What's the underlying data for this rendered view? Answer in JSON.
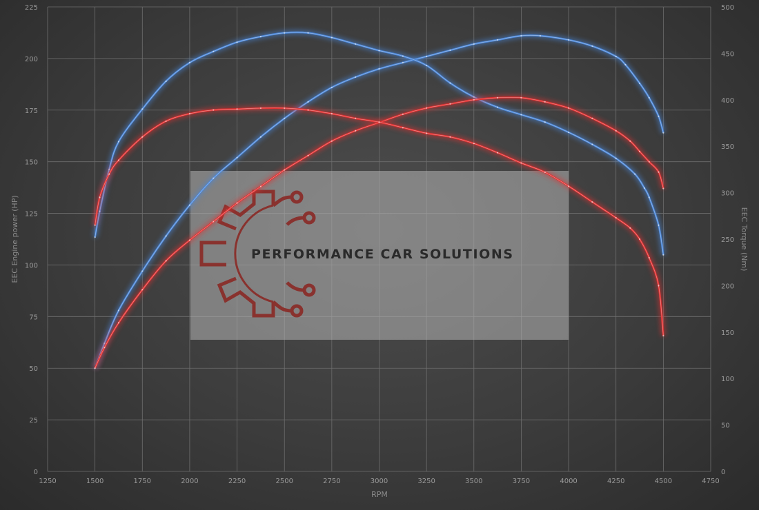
{
  "chart_data": {
    "type": "line",
    "xlabel": "RPM",
    "ylabel": "EEC Engine power (HP)",
    "y2label": "EEC Torque (Nm)",
    "xlim": [
      1250,
      4750
    ],
    "ylim": [
      0,
      225
    ],
    "y2lim": [
      0,
      500
    ],
    "x_ticks": [
      1250,
      1500,
      1750,
      2000,
      2250,
      2500,
      2750,
      3000,
      3250,
      3500,
      3750,
      4000,
      4250,
      4500,
      4750
    ],
    "y_ticks": [
      0,
      25,
      50,
      75,
      100,
      125,
      150,
      175,
      200,
      225
    ],
    "y2_ticks": [
      0,
      50,
      100,
      150,
      200,
      250,
      300,
      350,
      400,
      450,
      500
    ],
    "grid": true,
    "legend": "none",
    "colors": {
      "tuned": "#4a86d8",
      "stock": "#e03030"
    },
    "series": [
      {
        "axis": "left",
        "color": "#4a86d8",
        "points": [
          [
            1500,
            50
          ],
          [
            1550,
            62
          ],
          [
            1625,
            78
          ],
          [
            1750,
            97
          ],
          [
            1875,
            114
          ],
          [
            2000,
            129
          ],
          [
            2125,
            142
          ],
          [
            2250,
            152
          ],
          [
            2375,
            162
          ],
          [
            2500,
            171
          ],
          [
            2625,
            179
          ],
          [
            2750,
            186
          ],
          [
            2875,
            191
          ],
          [
            3000,
            195
          ],
          [
            3125,
            198
          ],
          [
            3250,
            201
          ],
          [
            3375,
            204
          ],
          [
            3500,
            207
          ],
          [
            3625,
            209
          ],
          [
            3750,
            211
          ],
          [
            3850,
            211
          ],
          [
            4000,
            209
          ],
          [
            4125,
            206
          ],
          [
            4250,
            201
          ],
          [
            4300,
            197
          ],
          [
            4375,
            188
          ],
          [
            4425,
            181
          ],
          [
            4475,
            172
          ],
          [
            4500,
            164
          ]
        ]
      },
      {
        "axis": "right",
        "color": "#4a86d8",
        "points": [
          [
            1500,
            252
          ],
          [
            1525,
            280
          ],
          [
            1575,
            325
          ],
          [
            1625,
            355
          ],
          [
            1750,
            390
          ],
          [
            1875,
            420
          ],
          [
            2000,
            440
          ],
          [
            2125,
            452
          ],
          [
            2250,
            462
          ],
          [
            2375,
            468
          ],
          [
            2500,
            472
          ],
          [
            2625,
            472
          ],
          [
            2750,
            467
          ],
          [
            2875,
            460
          ],
          [
            3000,
            453
          ],
          [
            3125,
            447
          ],
          [
            3250,
            437
          ],
          [
            3375,
            418
          ],
          [
            3500,
            403
          ],
          [
            3625,
            392
          ],
          [
            3750,
            384
          ],
          [
            3875,
            376
          ],
          [
            4000,
            365
          ],
          [
            4125,
            352
          ],
          [
            4250,
            337
          ],
          [
            4350,
            320
          ],
          [
            4400,
            305
          ],
          [
            4425,
            295
          ],
          [
            4475,
            265
          ],
          [
            4500,
            233
          ]
        ]
      },
      {
        "axis": "left",
        "color": "#e03030",
        "points": [
          [
            1500,
            50
          ],
          [
            1550,
            60
          ],
          [
            1625,
            72
          ],
          [
            1750,
            88
          ],
          [
            1875,
            102
          ],
          [
            2000,
            112
          ],
          [
            2125,
            121
          ],
          [
            2250,
            130
          ],
          [
            2375,
            138
          ],
          [
            2500,
            146
          ],
          [
            2625,
            153
          ],
          [
            2750,
            160
          ],
          [
            2875,
            165
          ],
          [
            3000,
            169
          ],
          [
            3125,
            173
          ],
          [
            3250,
            176
          ],
          [
            3375,
            178
          ],
          [
            3500,
            180
          ],
          [
            3625,
            181
          ],
          [
            3750,
            181
          ],
          [
            3875,
            179
          ],
          [
            4000,
            176
          ],
          [
            4125,
            171
          ],
          [
            4250,
            165
          ],
          [
            4325,
            160
          ],
          [
            4375,
            155
          ],
          [
            4425,
            150
          ],
          [
            4475,
            145
          ],
          [
            4500,
            137
          ]
        ]
      },
      {
        "axis": "right",
        "color": "#e03030",
        "points": [
          [
            1500,
            265
          ],
          [
            1525,
            295
          ],
          [
            1575,
            320
          ],
          [
            1625,
            335
          ],
          [
            1750,
            360
          ],
          [
            1875,
            377
          ],
          [
            2000,
            385
          ],
          [
            2125,
            389
          ],
          [
            2250,
            390
          ],
          [
            2375,
            391
          ],
          [
            2500,
            391
          ],
          [
            2625,
            389
          ],
          [
            2750,
            385
          ],
          [
            2875,
            380
          ],
          [
            3000,
            376
          ],
          [
            3125,
            370
          ],
          [
            3250,
            364
          ],
          [
            3375,
            360
          ],
          [
            3500,
            353
          ],
          [
            3625,
            343
          ],
          [
            3750,
            332
          ],
          [
            3875,
            322
          ],
          [
            4000,
            307
          ],
          [
            4125,
            290
          ],
          [
            4250,
            273
          ],
          [
            4325,
            262
          ],
          [
            4375,
            250
          ],
          [
            4425,
            230
          ],
          [
            4475,
            200
          ],
          [
            4500,
            146
          ]
        ]
      }
    ]
  },
  "watermark": {
    "text": "PERFORMANCE CAR SOLUTIONS"
  }
}
